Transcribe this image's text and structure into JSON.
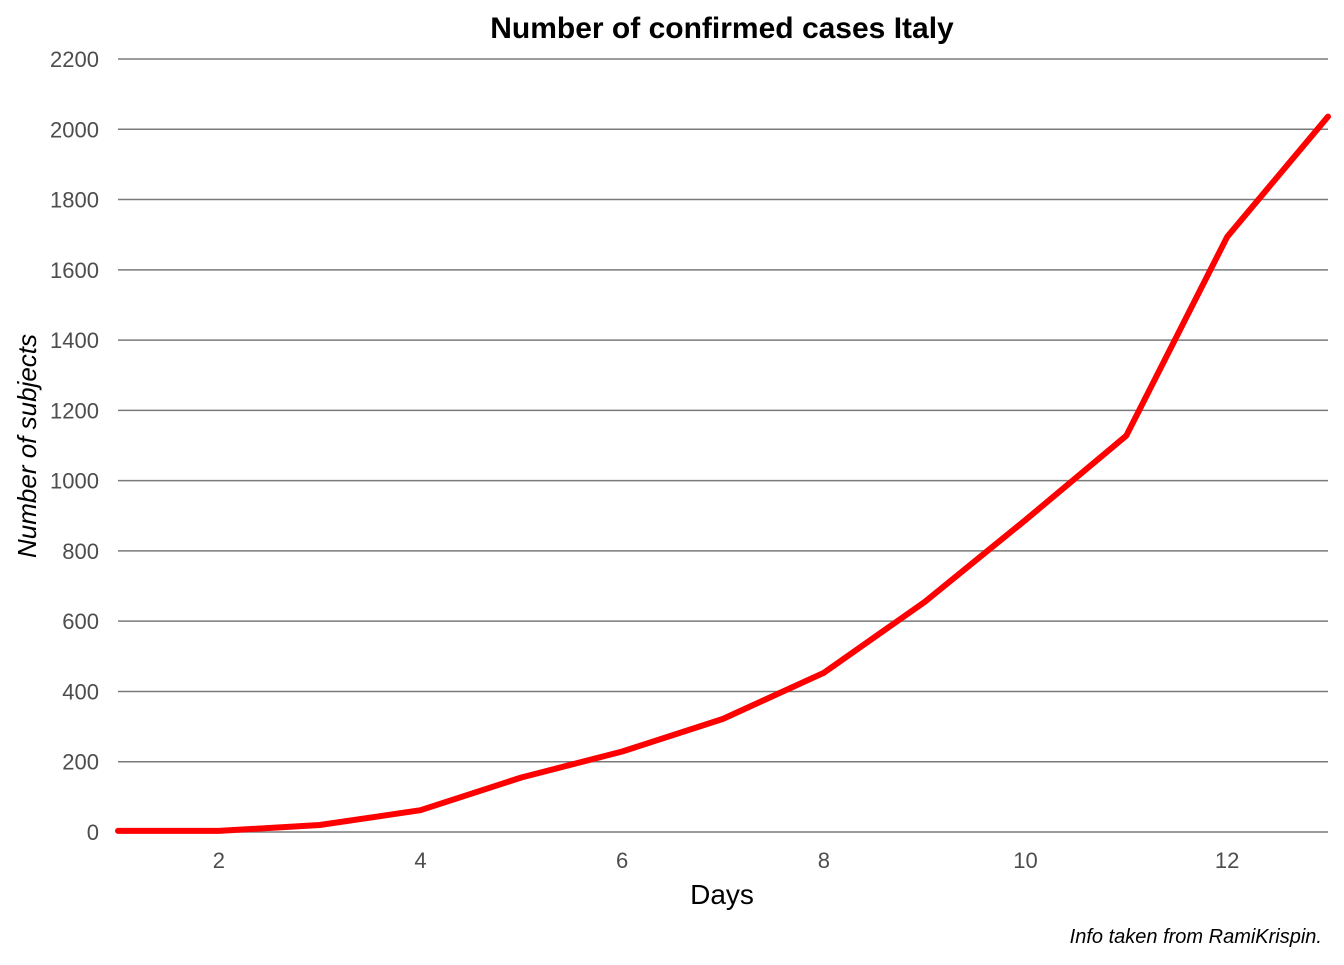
{
  "chart_data": {
    "type": "line",
    "title": "Number of confirmed cases Italy",
    "xlabel": "Days",
    "ylabel": "Number of subjects",
    "caption": "Info taken from RamiKrispin.",
    "xlim": [
      1,
      13
    ],
    "ylim": [
      0,
      2200
    ],
    "x_ticks": [
      2,
      4,
      6,
      8,
      10,
      12
    ],
    "y_ticks": [
      0,
      200,
      400,
      600,
      800,
      1000,
      1200,
      1400,
      1600,
      1800,
      2000,
      2200
    ],
    "grid": "horizontal",
    "legend": "none",
    "series": [
      {
        "color": "#ff0000",
        "x": [
          1,
          2,
          3,
          4,
          5,
          6,
          7,
          8,
          9,
          10,
          11,
          12,
          13
        ],
        "y": [
          3,
          3,
          20,
          62,
          155,
          229,
          322,
          453,
          655,
          888,
          1128,
          1694,
          2036
        ]
      }
    ]
  }
}
